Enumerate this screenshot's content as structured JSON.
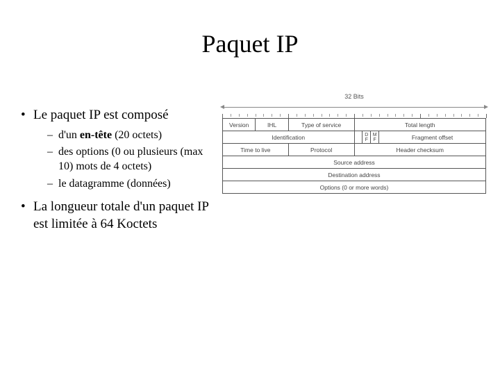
{
  "title": "Paquet IP",
  "bullets": {
    "b1": "Le paquet IP est composé",
    "b1a_pre": "d'un ",
    "b1a_hl": "en-tête",
    "b1a_post": " (20 octets)",
    "b1b": "des options (0 ou plusieurs (max 10) mots de 4 octets)",
    "b1c": "le datagramme (données)",
    "b2": "La longueur totale d'un paquet IP est limitée à 64 Koctets"
  },
  "diagram": {
    "bits_label": "32 Bits",
    "total_bits": 32,
    "tick_major_every": 8,
    "row1": {
      "c1": "Version",
      "c1_span": 4,
      "c2": "IHL",
      "c2_span": 4,
      "c3": "Type of service",
      "c3_span": 8,
      "c4": "Total length",
      "c4_span": 16
    },
    "row2": {
      "c1": "Identification",
      "c1_span": 16,
      "f1_top": "D",
      "f1_bot": "F",
      "f2_top": "M",
      "f2_bot": "F",
      "c3": "Fragment offset",
      "c3_span": 13
    },
    "row3": {
      "c1": "Time to live",
      "c1_span": 8,
      "c2": "Protocol",
      "c2_span": 8,
      "c3": "Header checksum",
      "c3_span": 16
    },
    "row4": {
      "c1": "Source address",
      "c1_span": 32
    },
    "row5": {
      "c1": "Destination address",
      "c1_span": 32
    },
    "row6": {
      "c1": "Options (0 or more words)",
      "c1_span": 32
    },
    "colors": {
      "text": "#444444",
      "border": "#555555",
      "background": "#ffffff"
    }
  }
}
